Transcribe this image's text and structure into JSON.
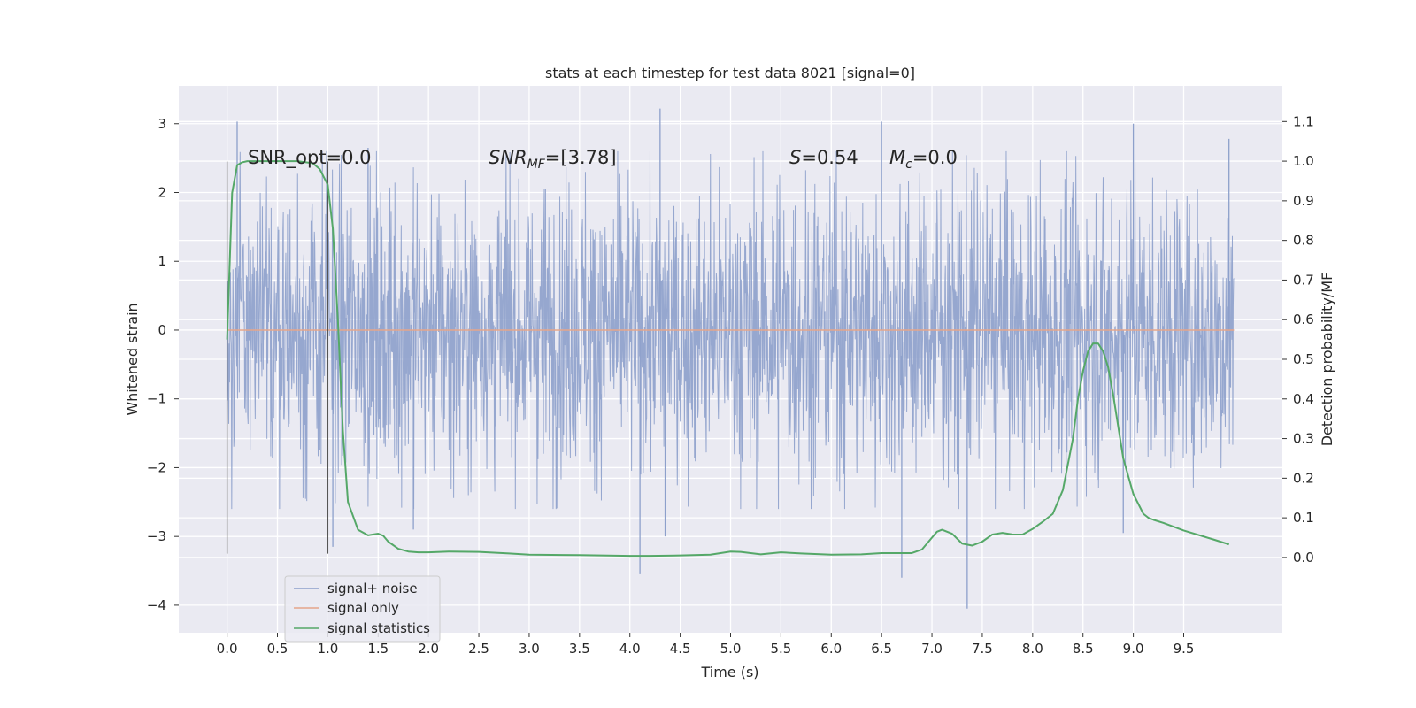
{
  "chart_data": {
    "type": "line",
    "title": "stats at each timestep for test data 8021 [signal=0]",
    "xlabel": "Time (s)",
    "ylabel": "Whitened strain",
    "y2label": "Detection probability/MF",
    "xlim": [
      -0.48,
      10.48
    ],
    "ylim": [
      -4.4,
      3.55
    ],
    "y2lim": [
      -0.19,
      1.19
    ],
    "x_ticks": [
      0.0,
      0.5,
      1.0,
      1.5,
      2.0,
      2.5,
      3.0,
      3.5,
      4.0,
      4.5,
      5.0,
      5.5,
      6.0,
      6.5,
      7.0,
      7.5,
      8.0,
      8.5,
      9.0,
      9.5
    ],
    "x_tick_labels": [
      "0.0",
      "0.5",
      "1.0",
      "1.5",
      "2.0",
      "2.5",
      "3.0",
      "3.5",
      "4.0",
      "4.5",
      "5.0",
      "5.5",
      "6.0",
      "6.5",
      "7.0",
      "7.5",
      "8.0",
      "8.5",
      "9.0",
      "9.5"
    ],
    "y_ticks": [
      3,
      2,
      1,
      0,
      -1,
      -2,
      -3,
      -4
    ],
    "y_tick_labels": [
      "3",
      "2",
      "1",
      "0",
      "−1",
      "−2",
      "−3",
      "−4"
    ],
    "y2_ticks": [
      1.1,
      1.0,
      0.9,
      0.8,
      0.7,
      0.6,
      0.5,
      0.4,
      0.3,
      0.2,
      0.1,
      0.0
    ],
    "y2_tick_labels": [
      "1.1",
      "1.0",
      "0.9",
      "0.8",
      "0.7",
      "0.6",
      "0.5",
      "0.4",
      "0.3",
      "0.2",
      "0.1",
      "0.0"
    ],
    "grid": true,
    "legend_position": "lower-left",
    "series": [
      {
        "name": "signal+ noise",
        "color": "#8da0cb",
        "style": "dense noise trace",
        "x_range": [
          0.0,
          10.0
        ],
        "typical_band": [
          -1.3,
          1.3
        ],
        "notable_peaks": [
          {
            "x": 0.1,
            "y": 3.03
          },
          {
            "x": 1.05,
            "y": -3.15
          },
          {
            "x": 1.4,
            "y": 2.65
          },
          {
            "x": 1.85,
            "y": -2.9
          },
          {
            "x": 4.1,
            "y": -3.55
          },
          {
            "x": 4.3,
            "y": 3.22
          },
          {
            "x": 4.35,
            "y": -3.0
          },
          {
            "x": 6.5,
            "y": 3.03
          },
          {
            "x": 6.7,
            "y": -3.6
          },
          {
            "x": 7.35,
            "y": -4.05
          },
          {
            "x": 8.9,
            "y": -2.95
          },
          {
            "x": 9.0,
            "y": 3.0
          },
          {
            "x": 9.95,
            "y": 2.78
          }
        ]
      },
      {
        "name": "signal only",
        "color": "#e5a58a",
        "x": [
          0.0,
          10.0
        ],
        "y": [
          0.0,
          0.0
        ]
      },
      {
        "name": "signal statistics",
        "color": "#55a868",
        "axis": "right",
        "x": [
          0.0,
          0.05,
          0.1,
          0.15,
          0.2,
          0.35,
          0.5,
          0.7,
          0.85,
          0.92,
          1.0,
          1.05,
          1.1,
          1.15,
          1.2,
          1.3,
          1.4,
          1.5,
          1.55,
          1.6,
          1.7,
          1.8,
          1.9,
          2.0,
          2.2,
          2.5,
          2.8,
          3.0,
          3.5,
          4.0,
          4.2,
          4.5,
          4.8,
          5.0,
          5.1,
          5.3,
          5.5,
          5.7,
          6.0,
          6.3,
          6.5,
          6.8,
          6.9,
          7.0,
          7.05,
          7.1,
          7.2,
          7.3,
          7.4,
          7.5,
          7.6,
          7.7,
          7.8,
          7.9,
          8.0,
          8.1,
          8.2,
          8.3,
          8.4,
          8.45,
          8.5,
          8.55,
          8.6,
          8.65,
          8.7,
          8.75,
          8.8,
          8.85,
          8.9,
          9.0,
          9.1,
          9.15,
          9.2,
          9.3,
          9.5,
          9.8,
          9.95
        ],
        "y": [
          0.55,
          0.92,
          0.99,
          0.997,
          1.0,
          1.0,
          1.0,
          1.0,
          0.995,
          0.98,
          0.94,
          0.83,
          0.6,
          0.32,
          0.14,
          0.07,
          0.056,
          0.06,
          0.055,
          0.04,
          0.022,
          0.015,
          0.013,
          0.013,
          0.015,
          0.014,
          0.01,
          0.007,
          0.006,
          0.004,
          0.004,
          0.005,
          0.007,
          0.015,
          0.014,
          0.008,
          0.013,
          0.01,
          0.007,
          0.008,
          0.011,
          0.011,
          0.02,
          0.05,
          0.065,
          0.07,
          0.06,
          0.035,
          0.03,
          0.04,
          0.058,
          0.062,
          0.058,
          0.058,
          0.072,
          0.09,
          0.11,
          0.17,
          0.3,
          0.4,
          0.47,
          0.52,
          0.54,
          0.54,
          0.52,
          0.48,
          0.41,
          0.33,
          0.25,
          0.16,
          0.11,
          0.1,
          0.095,
          0.087,
          0.068,
          0.045,
          0.033
        ]
      }
    ],
    "vertical_markers": [
      {
        "x": 0.0,
        "y_range": [
          -3.25,
          2.45
        ]
      },
      {
        "x": 1.0,
        "y_range": [
          -3.25,
          2.45
        ]
      }
    ],
    "annotations": {
      "snr_opt": "SNR_opt=0.0",
      "snr_mf_base": "SNR",
      "snr_mf_sub": "MF",
      "snr_mf_value": "=[3.78]",
      "s_symbol": "S",
      "s_value": "=0.54",
      "mc_base": "M",
      "mc_sub": "c",
      "mc_value": "=0.0"
    }
  }
}
